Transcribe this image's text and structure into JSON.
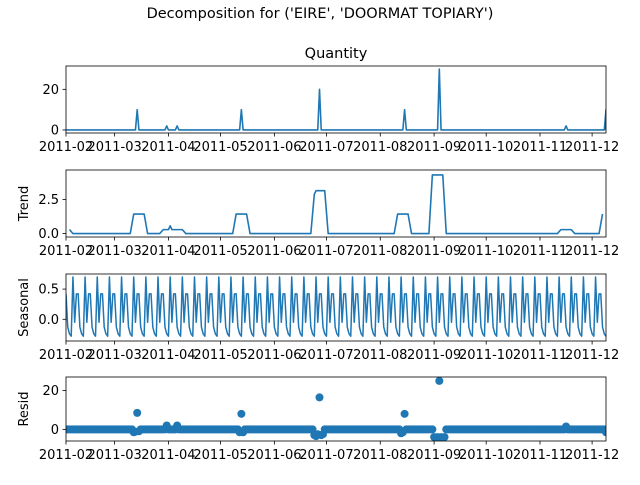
{
  "figure": {
    "suptitle": "Decomposition for ('EIRE', 'DOORMAT TOPIARY')"
  },
  "colors": {
    "series": "#1f77b4",
    "axis": "#000000",
    "background": "#ffffff"
  },
  "chart_data": [
    {
      "type": "line",
      "title": "Quantity",
      "ylabel": "",
      "xlim": [
        "2011-02-01",
        "2011-12-09"
      ],
      "ylim": [
        -1.5,
        31.5
      ],
      "yticks": [
        0,
        20
      ],
      "x_tick_labels": [
        "2011-02",
        "2011-03",
        "2011-04",
        "2011-05",
        "2011-06",
        "2011-07",
        "2011-08",
        "2011-09",
        "2011-10",
        "2011-11",
        "2011-12"
      ],
      "baseline": 0,
      "spikes": [
        {
          "x": "2011-03-14",
          "y": 10
        },
        {
          "x": "2011-03-31",
          "y": 2
        },
        {
          "x": "2011-04-06",
          "y": 2
        },
        {
          "x": "2011-05-13",
          "y": 10
        },
        {
          "x": "2011-06-27",
          "y": 20
        },
        {
          "x": "2011-08-15",
          "y": 10
        },
        {
          "x": "2011-09-04",
          "y": 30
        },
        {
          "x": "2011-11-16",
          "y": 2
        },
        {
          "x": "2011-12-09",
          "y": 10
        }
      ]
    },
    {
      "type": "line",
      "title": "",
      "ylabel": "Trend",
      "xlim": [
        "2011-02-01",
        "2011-12-09"
      ],
      "ylim": [
        -0.25,
        4.65
      ],
      "yticks": [
        0.0,
        2.5
      ],
      "ytick_labels": [
        "0.0",
        "2.5"
      ],
      "x_tick_labels": [
        "2011-02",
        "2011-03",
        "2011-04",
        "2011-05",
        "2011-06",
        "2011-07",
        "2011-08",
        "2011-09",
        "2011-10",
        "2011-11",
        "2011-12"
      ],
      "points": [
        [
          "2011-02-03",
          0.3
        ],
        [
          "2011-02-05",
          0.0
        ],
        [
          "2011-03-10",
          0.0
        ],
        [
          "2011-03-12",
          1.43
        ],
        [
          "2011-03-18",
          1.43
        ],
        [
          "2011-03-20",
          0.0
        ],
        [
          "2011-03-27",
          0.0
        ],
        [
          "2011-03-29",
          0.29
        ],
        [
          "2011-04-01",
          0.29
        ],
        [
          "2011-04-02",
          0.57
        ],
        [
          "2011-04-03",
          0.29
        ],
        [
          "2011-04-09",
          0.29
        ],
        [
          "2011-04-11",
          0.0
        ],
        [
          "2011-05-08",
          0.0
        ],
        [
          "2011-05-10",
          1.43
        ],
        [
          "2011-05-16",
          1.43
        ],
        [
          "2011-05-18",
          0.0
        ],
        [
          "2011-06-22",
          0.0
        ],
        [
          "2011-06-24",
          2.86
        ],
        [
          "2011-06-25",
          3.14
        ],
        [
          "2011-06-30",
          3.14
        ],
        [
          "2011-07-02",
          0.0
        ],
        [
          "2011-08-09",
          0.0
        ],
        [
          "2011-08-11",
          1.43
        ],
        [
          "2011-08-17",
          1.43
        ],
        [
          "2011-08-19",
          0.0
        ],
        [
          "2011-08-29",
          0.0
        ],
        [
          "2011-08-31",
          4.29
        ],
        [
          "2011-09-06",
          4.29
        ],
        [
          "2011-09-08",
          0.0
        ],
        [
          "2011-11-11",
          0.0
        ],
        [
          "2011-11-13",
          0.29
        ],
        [
          "2011-11-19",
          0.29
        ],
        [
          "2011-11-21",
          0.0
        ],
        [
          "2011-12-05",
          0.0
        ],
        [
          "2011-12-07",
          1.43
        ]
      ]
    },
    {
      "type": "line",
      "title": "",
      "ylabel": "Seasonal",
      "xlim": [
        "2011-02-01",
        "2011-12-09"
      ],
      "ylim": [
        -0.36,
        0.75
      ],
      "yticks": [
        0.0,
        0.5
      ],
      "ytick_labels": [
        "0.0",
        "0.5"
      ],
      "x_tick_labels": [
        "2011-02",
        "2011-03",
        "2011-04",
        "2011-05",
        "2011-06",
        "2011-07",
        "2011-08",
        "2011-09",
        "2011-10",
        "2011-11",
        "2011-12"
      ],
      "period_days": 7,
      "start": "2011-02-01",
      "end": "2011-12-09",
      "weekly_pattern": [
        0.42,
        -0.13,
        -0.24,
        -0.28,
        0.7,
        -0.05,
        0.42
      ]
    },
    {
      "type": "scatter",
      "title": "",
      "ylabel": "Resid",
      "xlim": [
        "2011-02-01",
        "2011-12-09"
      ],
      "ylim": [
        -6,
        27
      ],
      "yticks": [
        0,
        20
      ],
      "x_tick_labels": [
        "2011-02",
        "2011-03",
        "2011-04",
        "2011-05",
        "2011-06",
        "2011-07",
        "2011-08",
        "2011-09",
        "2011-10",
        "2011-11",
        "2011-12"
      ],
      "start": "2011-02-01",
      "end": "2011-12-09",
      "outliers": [
        [
          "2011-03-12",
          -1.5
        ],
        [
          "2011-03-13",
          -1.2
        ],
        [
          "2011-03-14",
          8.5
        ],
        [
          "2011-03-15",
          -1.0
        ],
        [
          "2011-03-31",
          2.0
        ],
        [
          "2011-04-06",
          2.0
        ],
        [
          "2011-05-12",
          -1.5
        ],
        [
          "2011-05-13",
          8.0
        ],
        [
          "2011-05-14",
          -1.5
        ],
        [
          "2011-06-24",
          -3.0
        ],
        [
          "2011-06-25",
          -3.5
        ],
        [
          "2011-06-26",
          -2.5
        ],
        [
          "2011-06-27",
          16.5
        ],
        [
          "2011-06-28",
          -3.0
        ],
        [
          "2011-06-29",
          -2.5
        ],
        [
          "2011-08-13",
          -2.0
        ],
        [
          "2011-08-14",
          -1.5
        ],
        [
          "2011-08-15",
          8.0
        ],
        [
          "2011-09-01",
          -4.0
        ],
        [
          "2011-09-02",
          -4.2
        ],
        [
          "2011-09-03",
          -4.0
        ],
        [
          "2011-09-04",
          25.0
        ],
        [
          "2011-09-05",
          -4.0
        ],
        [
          "2011-09-06",
          -4.2
        ],
        [
          "2011-09-07",
          -4.0
        ],
        [
          "2011-11-16",
          1.5
        ],
        [
          "2011-12-09",
          -1.5
        ]
      ]
    }
  ]
}
